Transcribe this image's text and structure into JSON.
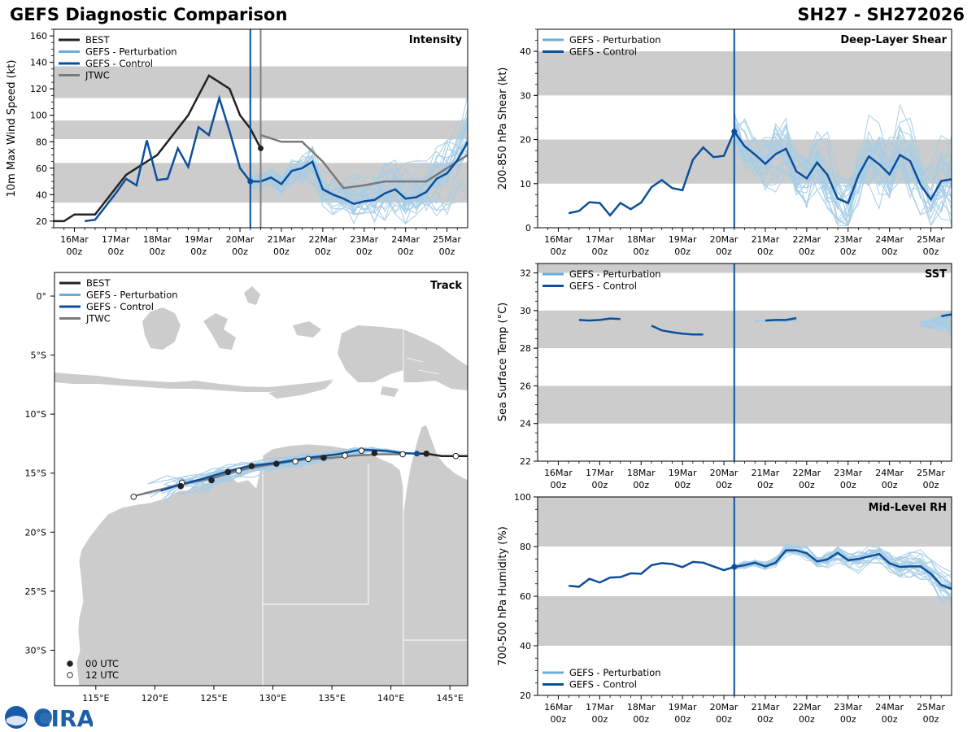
{
  "header": {
    "title": "GEFS Diagnostic Comparison",
    "storm": "SH27 - SH272026"
  },
  "logo": {
    "text": "CIRA"
  },
  "colors": {
    "best": "#222222",
    "pert": "#a6cde6",
    "pertLegend": "#6aaed6",
    "control": "#0b4f9c",
    "jtwc": "#7a7a7a",
    "band": "#cccccc",
    "land": "#cccccc",
    "vline2": "#808080"
  },
  "time_axis": {
    "ticks": [
      {
        "label": "16Mar\n00z",
        "t": 0
      },
      {
        "label": "17Mar\n00z",
        "t": 1
      },
      {
        "label": "18Mar\n00z",
        "t": 2
      },
      {
        "label": "19Mar\n00z",
        "t": 3
      },
      {
        "label": "20Mar\n00z",
        "t": 4
      },
      {
        "label": "21Mar\n00z",
        "t": 5
      },
      {
        "label": "22Mar\n00z",
        "t": 6
      },
      {
        "label": "23Mar\n00z",
        "t": 7
      },
      {
        "label": "24Mar\n00z",
        "t": 8
      },
      {
        "label": "25Mar\n00z",
        "t": 9
      }
    ],
    "range": [
      -0.5,
      9.5
    ],
    "init_time": 4.25,
    "jtwc_time": 4.5
  },
  "chart_data": [
    {
      "id": "intensity",
      "type": "line",
      "title": "Intensity",
      "ylabel": "10m Max Wind Speed (kt)",
      "ylim": [
        15,
        165
      ],
      "yticks": [
        20,
        40,
        60,
        80,
        100,
        120,
        140,
        160
      ],
      "bands": [
        [
          34,
          64
        ],
        [
          82,
          96
        ],
        [
          113,
          137
        ]
      ],
      "legend": [
        "BEST",
        "GEFS - Perturbation",
        "GEFS - Control",
        "JTWC"
      ],
      "series": [
        {
          "name": "BEST",
          "x": [
            -0.5,
            -0.25,
            0,
            0.25,
            0.5,
            0.75,
            1,
            1.25,
            1.5,
            1.75,
            2,
            2.25,
            2.5,
            2.75,
            3,
            3.25,
            3.5,
            3.75,
            4,
            4.25,
            4.5
          ],
          "y": [
            20,
            20,
            25,
            25,
            25,
            35,
            45,
            55,
            60,
            65,
            70,
            80,
            90,
            100,
            115,
            130,
            125,
            120,
            100,
            90,
            75
          ]
        },
        {
          "name": "GEFS - Control",
          "x": [
            0.25,
            0.5,
            0.75,
            1,
            1.25,
            1.5,
            1.75,
            2,
            2.25,
            2.5,
            2.75,
            3,
            3.25,
            3.5,
            3.75,
            4,
            4.25,
            4.5,
            4.75,
            5,
            5.25,
            5.5,
            5.75,
            6,
            6.25,
            6.5,
            6.75,
            7,
            7.25,
            7.5,
            7.75,
            8,
            8.25,
            8.5,
            8.75,
            9,
            9.25,
            9.5
          ],
          "y": [
            20,
            21,
            31,
            41,
            52,
            47,
            81,
            51,
            52,
            75,
            61,
            91,
            85,
            113,
            88,
            60,
            50,
            50,
            53,
            48,
            58,
            60,
            65,
            44,
            40,
            37,
            33,
            35,
            36,
            41,
            44,
            37,
            38,
            42,
            52,
            56,
            66,
            80
          ]
        },
        {
          "name": "JTWC",
          "x": [
            4.5,
            5,
            5.5,
            6,
            6.5,
            7,
            7.5,
            8,
            8.5,
            9,
            9.5
          ],
          "y": [
            85,
            80,
            80,
            65,
            45,
            47,
            50,
            50,
            50,
            60,
            70
          ]
        }
      ],
      "markers": [
        {
          "series": "BEST",
          "x": 4.5,
          "y": 75
        },
        {
          "series": "GEFS - Control",
          "x": 4.25,
          "y": 50
        }
      ]
    },
    {
      "id": "shear",
      "type": "line",
      "title": "Deep-Layer Shear",
      "ylabel": "200-850 hPa Shear (kt)",
      "ylim": [
        0,
        45
      ],
      "yticks": [
        0,
        10,
        20,
        30,
        40
      ],
      "bands": [
        [
          10,
          20
        ],
        [
          30,
          40
        ]
      ],
      "legend": [
        "GEFS - Perturbation",
        "GEFS - Control"
      ],
      "series": [
        {
          "name": "GEFS - Control",
          "x": [
            0.25,
            0.5,
            0.75,
            1,
            1.25,
            1.5,
            1.75,
            2,
            2.25,
            2.5,
            2.75,
            3,
            3.25,
            3.5,
            3.75,
            4,
            4.25,
            4.5,
            4.75,
            5,
            5.25,
            5.5,
            5.75,
            6,
            6.25,
            6.5,
            6.75,
            7,
            7.25,
            7.5,
            7.75,
            8,
            8.25,
            8.5,
            8.75,
            9,
            9.25,
            9.5
          ],
          "y": [
            3.3,
            3.8,
            5.8,
            5.6,
            2.8,
            5.6,
            4.2,
            5.7,
            9.2,
            10.8,
            9.0,
            8.5,
            15.4,
            18.2,
            16.0,
            16.3,
            21.8,
            18.5,
            16.6,
            14.5,
            16.7,
            17.9,
            12.8,
            11.2,
            14.8,
            12.0,
            6.6,
            5.6,
            11.9,
            16.2,
            14.4,
            12.1,
            16.5,
            15.1,
            9.7,
            6.4,
            10.6,
            11.0
          ]
        }
      ],
      "markers": [
        {
          "series": "GEFS - Control",
          "x": 4.25,
          "y": 21.8
        }
      ]
    },
    {
      "id": "sst",
      "type": "line",
      "title": "SST",
      "ylabel": "Sea Surface Temp (°C)",
      "ylim": [
        22,
        32.5
      ],
      "yticks": [
        22,
        24,
        26,
        28,
        30,
        32
      ],
      "bands": [
        [
          24,
          26
        ],
        [
          28,
          30
        ],
        [
          32,
          33
        ]
      ],
      "legend": [
        "GEFS - Perturbation",
        "GEFS - Control"
      ],
      "series": [
        {
          "name": "GEFS - Control",
          "segments": [
            {
              "x": [
                0.5,
                0.75,
                1,
                1.25,
                1.5
              ],
              "y": [
                29.5,
                29.47,
                29.5,
                29.58,
                29.55
              ]
            },
            {
              "x": [
                2.25,
                2.5,
                2.75,
                3,
                3.25,
                3.5
              ],
              "y": [
                29.2,
                28.95,
                28.85,
                28.77,
                28.73,
                28.73
              ]
            },
            {
              "x": [
                5.0,
                5.25,
                5.5,
                5.75
              ],
              "y": [
                29.47,
                29.5,
                29.5,
                29.6
              ]
            },
            {
              "x": [
                9.25,
                9.5
              ],
              "y": [
                29.7,
                29.8
              ]
            }
          ]
        }
      ]
    },
    {
      "id": "rh",
      "type": "line",
      "title": "Mid-Level RH",
      "ylabel": "700-500 hPa Humidity (%)",
      "ylim": [
        20,
        100
      ],
      "yticks": [
        20,
        40,
        60,
        80,
        100
      ],
      "bands": [
        [
          40,
          60
        ],
        [
          80,
          100
        ]
      ],
      "legend": [
        "GEFS - Perturbation",
        "GEFS - Control"
      ],
      "series": [
        {
          "name": "GEFS - Control",
          "x": [
            0.25,
            0.5,
            0.75,
            1,
            1.25,
            1.5,
            1.75,
            2,
            2.25,
            2.5,
            2.75,
            3,
            3.25,
            3.5,
            3.75,
            4,
            4.25,
            4.5,
            4.75,
            5,
            5.25,
            5.5,
            5.75,
            6,
            6.25,
            6.5,
            6.75,
            7,
            7.25,
            7.5,
            7.75,
            8,
            8.25,
            8.5,
            8.75,
            9,
            9.25,
            9.5
          ],
          "y": [
            64.2,
            63.8,
            67.0,
            65.5,
            67.5,
            67.7,
            69.2,
            69.0,
            72.5,
            73.3,
            73.0,
            71.7,
            73.8,
            73.5,
            72.0,
            70.5,
            71.8,
            72.5,
            73.5,
            72.0,
            73.5,
            78.5,
            78.5,
            77.3,
            74.0,
            74.8,
            77.5,
            74.5,
            75.0,
            76.0,
            77.0,
            73.2,
            71.8,
            72.0,
            72.0,
            69.0,
            64.5,
            63.0
          ]
        }
      ],
      "markers": [
        {
          "series": "GEFS - Control",
          "x": 4.25,
          "y": 71.8
        }
      ]
    },
    {
      "id": "track",
      "type": "map",
      "title": "Track",
      "lon_range": [
        111.5,
        146.5
      ],
      "lat_range": [
        -33,
        2
      ],
      "xticks": [
        115,
        120,
        125,
        130,
        135,
        140,
        145
      ],
      "xtick_labels": [
        "115°E",
        "120°E",
        "125°E",
        "130°E",
        "135°E",
        "140°E",
        "145°E"
      ],
      "yticks": [
        0,
        -5,
        -10,
        -15,
        -20,
        -25,
        -30
      ],
      "ytick_labels": [
        "0°",
        "5°S",
        "10°S",
        "15°S",
        "20°S",
        "25°S",
        "30°S"
      ],
      "legend": [
        "BEST",
        "GEFS - Perturbation",
        "GEFS - Control",
        "JTWC"
      ],
      "time_legend": [
        "00 UTC",
        "12 UTC"
      ],
      "best_track": {
        "lon": [
          146.5,
          145.5,
          144.3,
          143.0,
          142.0
        ],
        "lat": [
          -13.55,
          -13.55,
          -13.55,
          -13.35,
          -13.35
        ]
      },
      "best_fixes": [
        {
          "lon": 145.5,
          "lat": -13.55,
          "utc": "12"
        },
        {
          "lon": 143.0,
          "lat": -13.35,
          "utc": "00"
        }
      ],
      "control_track": {
        "lon": [
          142.2,
          141.0,
          139.5,
          137.5,
          135.5,
          133.0,
          130.5,
          128.0,
          126.0,
          124.0,
          122.0,
          120.5
        ],
        "lat": [
          -13.35,
          -13.3,
          -13.1,
          -13.0,
          -13.4,
          -13.7,
          -14.1,
          -14.4,
          -14.9,
          -15.5,
          -16.0,
          -16.5
        ]
      },
      "jtwc_track": {
        "lon": [
          141.0,
          139.0,
          137.0,
          135.0,
          133.0,
          131.0,
          129.0,
          127.0,
          125.0,
          122.5,
          120.0,
          118.0
        ],
        "lat": [
          -13.4,
          -13.4,
          -13.5,
          -13.7,
          -13.8,
          -14.1,
          -14.4,
          -14.8,
          -15.4,
          -15.9,
          -16.5,
          -17.0
        ]
      },
      "jtwc_fixes": [
        {
          "lon": 141.0,
          "lat": -13.4,
          "utc": "12"
        },
        {
          "lon": 138.6,
          "lat": -13.3,
          "utc": "00"
        },
        {
          "lon": 137.5,
          "lat": -13.1,
          "utc": "12"
        },
        {
          "lon": 136.1,
          "lat": -13.5,
          "utc": "12"
        },
        {
          "lon": 134.3,
          "lat": -13.7,
          "utc": "00"
        },
        {
          "lon": 133.0,
          "lat": -13.8,
          "utc": "12"
        },
        {
          "lon": 131.9,
          "lat": -14.0,
          "utc": "12"
        },
        {
          "lon": 130.3,
          "lat": -14.2,
          "utc": "00"
        },
        {
          "lon": 128.2,
          "lat": -14.4,
          "utc": "00"
        },
        {
          "lon": 127.1,
          "lat": -14.8,
          "utc": "12"
        },
        {
          "lon": 126.2,
          "lat": -14.9,
          "utc": "00"
        },
        {
          "lon": 124.8,
          "lat": -15.6,
          "utc": "00"
        },
        {
          "lon": 122.3,
          "lat": -15.8,
          "utc": "12"
        },
        {
          "lon": 122.2,
          "lat": -16.1,
          "utc": "00"
        },
        {
          "lon": 118.2,
          "lat": -17.0,
          "utc": "12"
        }
      ]
    }
  ]
}
